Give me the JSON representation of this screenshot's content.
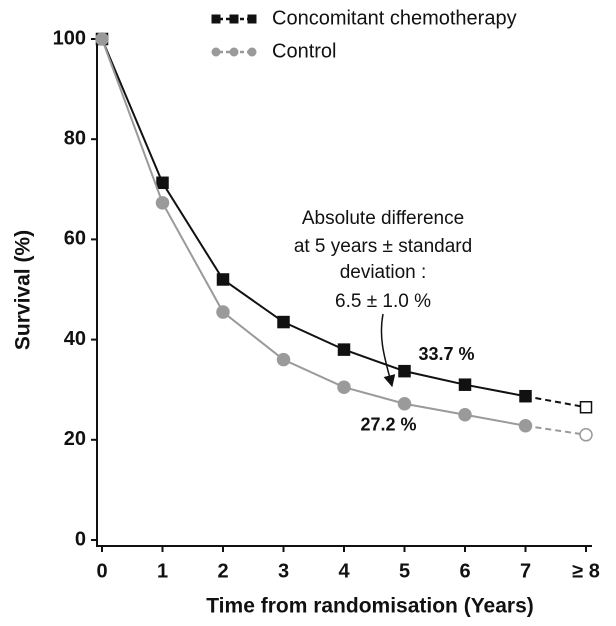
{
  "chart_data": {
    "type": "line",
    "x_label": "Time from randomisation (Years)",
    "y_label": "Survival (%)",
    "x": [
      0,
      1,
      2,
      3,
      4,
      5,
      6,
      7,
      8
    ],
    "xlim": [
      0,
      8
    ],
    "xticks": [
      0,
      1,
      2,
      3,
      4,
      5,
      6,
      7,
      {
        "value": 8,
        "label": "≥ 8"
      }
    ],
    "ylim": [
      0,
      100
    ],
    "yticks": [
      0,
      20,
      40,
      60,
      80,
      100
    ],
    "grid": false,
    "legend": "top",
    "series": [
      {
        "name": "Concomitant chemotherapy",
        "color": "#111111",
        "marker": "square",
        "dashed_last_segment": true,
        "values": [
          100,
          71.3,
          52,
          43.5,
          38,
          33.7,
          31,
          28.7,
          26.5
        ],
        "value_labels": [
          null,
          null,
          null,
          null,
          null,
          "33.7 %",
          null,
          null,
          null
        ]
      },
      {
        "name": "Control",
        "color": "#9a9a9a",
        "marker": "circle",
        "dashed_last_segment": true,
        "values": [
          100,
          67.3,
          45.5,
          36,
          30.5,
          27.2,
          25,
          22.8,
          21
        ],
        "value_labels": [
          null,
          null,
          null,
          null,
          null,
          "27.2 %",
          null,
          null,
          null
        ]
      }
    ],
    "annotation": [
      "Absolute difference",
      "at 5 years ± standard",
      "deviation :",
      "6.5 ± 1.0 %"
    ]
  }
}
